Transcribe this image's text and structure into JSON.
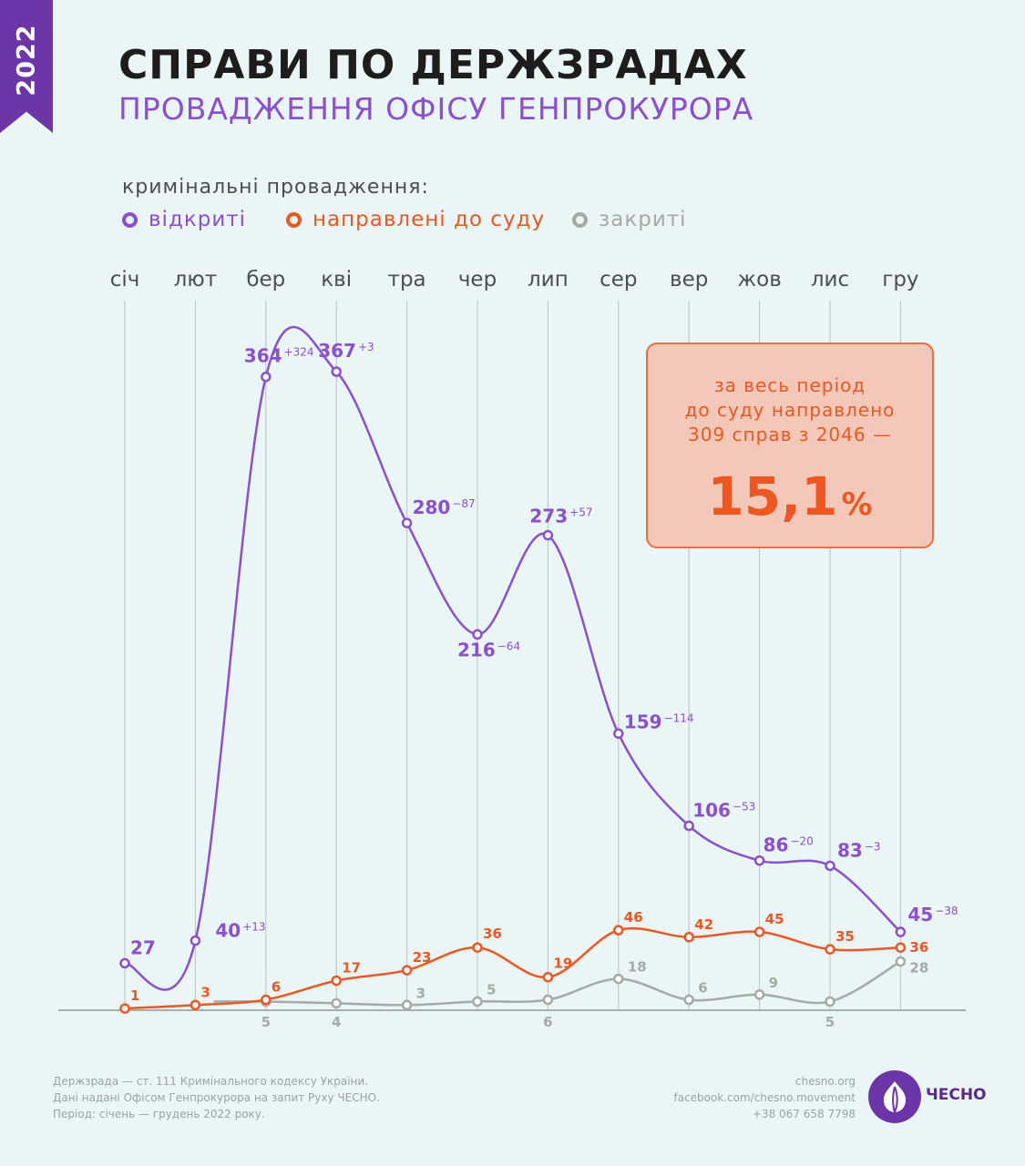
{
  "year": "2022",
  "title": "СПРАВИ ПО ДЕРЖЗРАДАХ",
  "subtitle": "ПРОВАДЖЕННЯ ОФІСУ ГЕНПРОКУРОРА",
  "legend": {
    "title": "кримінальні провадження:",
    "items": [
      {
        "label": "відкриті",
        "color": "#8a4fd4"
      },
      {
        "label": "направлені до суду",
        "color": "#f0561f"
      },
      {
        "label": "закриті",
        "color": "#a3aba9"
      }
    ]
  },
  "callout": {
    "text": "за весь період\nдо суду направлено\n309 справ з 2046 —",
    "value": "15,1",
    "unit": "%"
  },
  "chart_data": {
    "type": "line",
    "categories": [
      "січ",
      "лют",
      "бер",
      "кві",
      "тра",
      "чер",
      "лип",
      "сер",
      "вер",
      "жов",
      "лис",
      "гру"
    ],
    "series": [
      {
        "name": "відкриті",
        "color": "#8a4fd4",
        "values": [
          27,
          40,
          364,
          367,
          280,
          216,
          273,
          159,
          106,
          86,
          83,
          45
        ],
        "changes": [
          "",
          "+13",
          "+324",
          "+3",
          "−87",
          "−64",
          "+57",
          "−114",
          "−53",
          "−20",
          "−3",
          "−38"
        ]
      },
      {
        "name": "направлені до суду",
        "color": "#f0561f",
        "values": [
          1,
          3,
          6,
          17,
          23,
          36,
          19,
          46,
          42,
          45,
          35,
          36
        ]
      },
      {
        "name": "закриті",
        "color": "#a3aba9",
        "values": [
          null,
          null,
          5,
          4,
          3,
          5,
          6,
          18,
          6,
          9,
          5,
          28
        ]
      }
    ],
    "ylim": [
      0,
      380
    ],
    "grid": "vertical"
  },
  "footer": {
    "lines": [
      "Держзрада — ст. 111 Кримінального кодексу України.",
      "Дані надані Офісом Генпрокурора на запит Руху ЧЕСНО.",
      "Період: січень — грудень 2022 року."
    ],
    "links": [
      "chesno.org",
      "facebook.com/chesno.movement",
      "+38 067 658 7798"
    ],
    "logo": "ЧЕСНО"
  }
}
